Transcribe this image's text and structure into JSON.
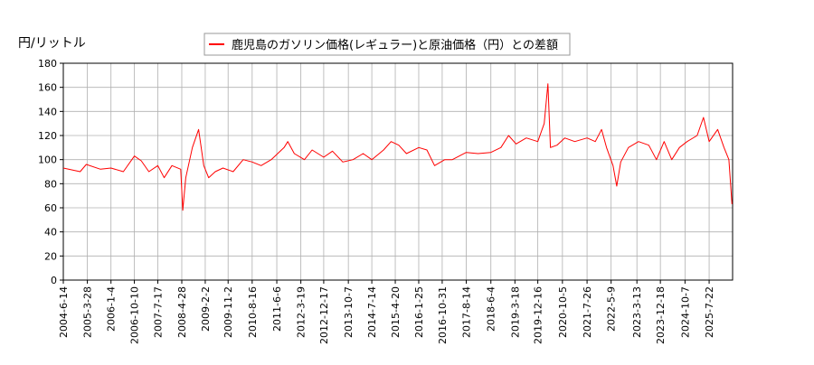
{
  "chart_data": {
    "type": "line",
    "title": "",
    "ylabel": "円/リットル",
    "xlabel": "",
    "ylim": [
      0,
      180
    ],
    "xlim": [
      "2004-06-14",
      "2026-04-28"
    ],
    "grid": true,
    "legend_placement": "top-center",
    "yticks": [
      0,
      20,
      40,
      60,
      80,
      100,
      120,
      140,
      160,
      180
    ],
    "xtick_labels": [
      "2004-6-14",
      "2005-3-28",
      "2006-1-4",
      "2006-10-10",
      "2007-7-17",
      "2008-4-28",
      "2009-2-2",
      "2009-11-2",
      "2010-8-16",
      "2011-6-6",
      "2012-3-19",
      "2012-12-17",
      "2013-10-7",
      "2014-7-14",
      "2015-4-20",
      "2016-1-25",
      "2016-10-31",
      "2017-8-14",
      "2018-6-4",
      "2019-3-18",
      "2019-12-16",
      "2020-10-5",
      "2021-7-26",
      "2022-5-9",
      "2023-3-13",
      "2023-12-18",
      "2024-10-7",
      "2025-7-22"
    ],
    "series": [
      {
        "name": "鹿児島のガソリン価格(レギュラー)と原油価格（円）との差額",
        "color": "#ff0000",
        "x": [
          "2004-06-14",
          "2005-01-01",
          "2005-03-15",
          "2005-09-01",
          "2006-01-04",
          "2006-06-01",
          "2006-10-10",
          "2007-01-01",
          "2007-04-01",
          "2007-07-17",
          "2007-10-01",
          "2008-01-01",
          "2008-04-15",
          "2008-05-10",
          "2008-06-15",
          "2008-09-01",
          "2008-11-15",
          "2009-01-15",
          "2009-03-15",
          "2009-06-01",
          "2009-09-01",
          "2010-01-01",
          "2010-05-01",
          "2010-08-16",
          "2010-12-01",
          "2011-04-01",
          "2011-09-01",
          "2011-10-15",
          "2012-01-01",
          "2012-05-01",
          "2012-08-01",
          "2012-12-17",
          "2013-04-01",
          "2013-08-01",
          "2013-12-01",
          "2014-04-01",
          "2014-07-14",
          "2014-12-01",
          "2015-03-01",
          "2015-06-01",
          "2015-09-01",
          "2016-01-25",
          "2016-05-01",
          "2016-08-01",
          "2016-12-01",
          "2017-03-01",
          "2017-08-14",
          "2018-01-01",
          "2018-06-04",
          "2018-10-01",
          "2019-01-01",
          "2019-04-01",
          "2019-08-01",
          "2019-12-16",
          "2020-03-01",
          "2020-04-15",
          "2020-05-15",
          "2020-08-01",
          "2020-11-01",
          "2021-03-01",
          "2021-07-26",
          "2021-11-01",
          "2022-01-15",
          "2022-03-15",
          "2022-06-01",
          "2022-07-15",
          "2022-09-01",
          "2022-12-01",
          "2023-04-01",
          "2023-08-01",
          "2023-11-01",
          "2024-02-01",
          "2024-05-01",
          "2024-08-01",
          "2024-11-01",
          "2025-03-01",
          "2025-05-15",
          "2025-07-22",
          "2025-11-01",
          "2026-01-15",
          "2026-03-15",
          "2026-04-20"
        ],
        "values": [
          93,
          90,
          96,
          92,
          93,
          90,
          103,
          99,
          90,
          95,
          85,
          95,
          92,
          58,
          85,
          110,
          125,
          95,
          85,
          90,
          93,
          90,
          100,
          98,
          95,
          100,
          110,
          115,
          105,
          100,
          108,
          102,
          107,
          98,
          100,
          105,
          100,
          108,
          115,
          112,
          105,
          110,
          108,
          95,
          100,
          100,
          106,
          105,
          106,
          110,
          120,
          113,
          118,
          115,
          130,
          163,
          110,
          112,
          118,
          115,
          118,
          115,
          125,
          110,
          95,
          78,
          98,
          110,
          115,
          112,
          100,
          115,
          100,
          110,
          115,
          120,
          135,
          115,
          125,
          110,
          100,
          63
        ]
      }
    ]
  }
}
